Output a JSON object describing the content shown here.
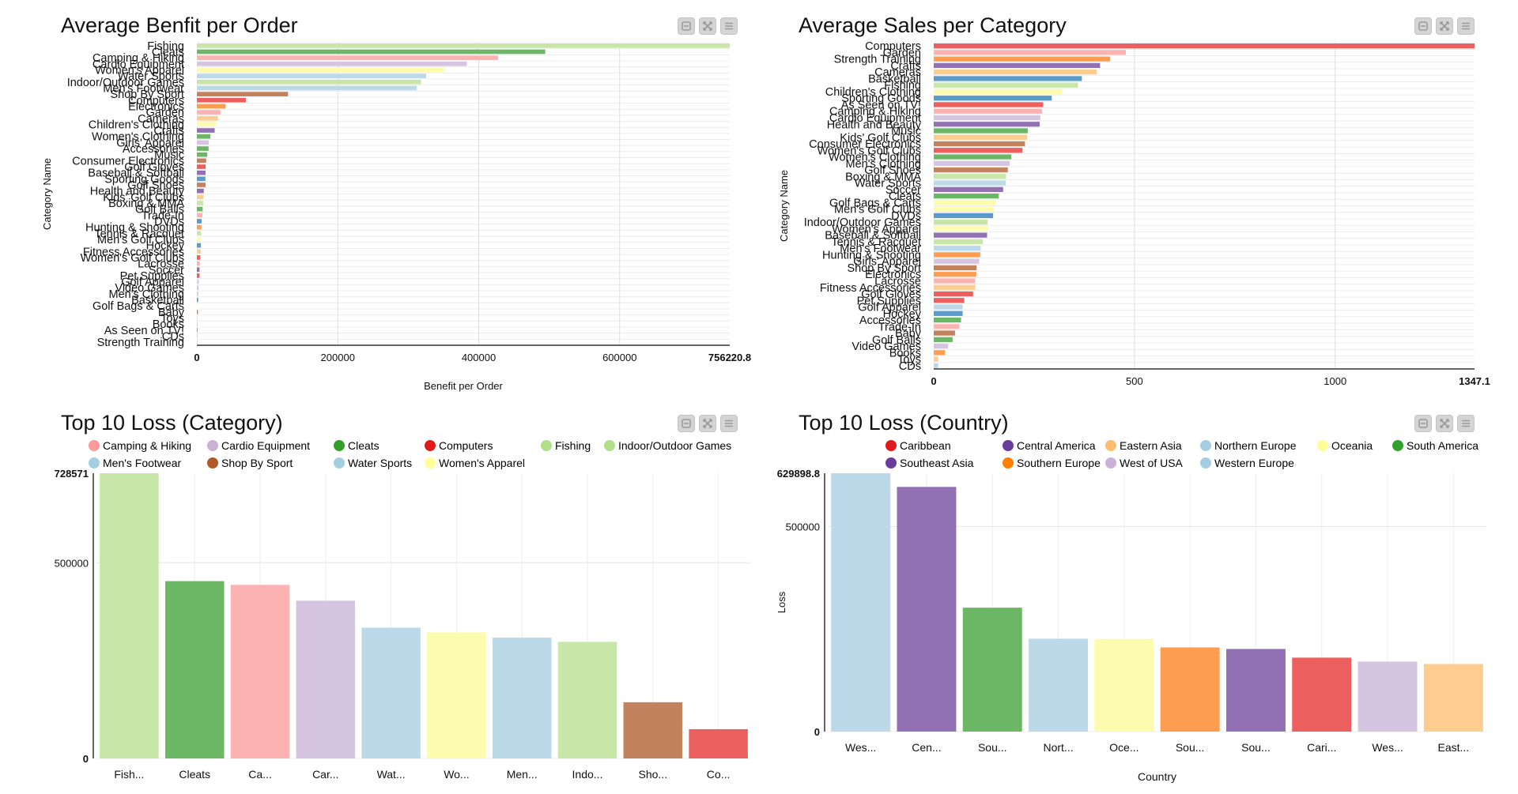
{
  "toolbar": {
    "icons": [
      "minimize-icon",
      "fullscreen-icon",
      "menu-icon"
    ]
  },
  "chart_data": [
    {
      "id": "benefit",
      "type": "bar",
      "orientation": "horizontal",
      "title": "Average Benfit per Order",
      "xlabel": "Benefit per Order",
      "ylabel": "Category Name",
      "xlim": [
        0,
        756220.8
      ],
      "xticks": [
        "0",
        "200000",
        "400000",
        "600000",
        "756220.8"
      ],
      "xtick_values": [
        0,
        200000,
        400000,
        600000,
        756220.8
      ],
      "grid": true,
      "categories": [
        "Fishing",
        "Cleats",
        "Camping & Hiking",
        "Cardio Equipment",
        "Women's Apparel",
        "Water Sports",
        "Indoor/Outdoor Games",
        "Men's Footwear",
        "Shop By Sport",
        "Computers",
        "Electronics",
        "Garden",
        "Cameras",
        "Children's Clothing",
        "Crafts",
        "Women's Clothing",
        "Girls' Apparel",
        "Accessories",
        "Music",
        "Consumer Electronics",
        "Golf Gloves",
        "Baseball & Softball",
        "Sporting Goods",
        "Golf Shoes",
        "Health and Beauty",
        "Kids' Golf Clubs",
        "Boxing & MMA",
        "Golf Balls",
        "Trade-In",
        "DVDs",
        "Hunting & Shooting",
        "Tennis & Racquet",
        "Men's Golf Clubs",
        "Hockey",
        "Fitness Accessories",
        "Women's Golf Clubs",
        "Lacrosse",
        "Soccer",
        "Pet Supplies",
        "Golf Apparel",
        "Video Games",
        "Men's Clothing",
        "Basketball",
        "Golf Bags & Carts",
        "Baby",
        "Toys",
        "Books",
        "As Seen on  TV!",
        "CDs",
        "Strength Training"
      ],
      "values": [
        756220.8,
        494400,
        427400,
        383200,
        350800,
        325400,
        318300,
        312200,
        129400,
        69500,
        40600,
        33500,
        30000,
        27400,
        25300,
        19200,
        17000,
        16600,
        14700,
        13200,
        12400,
        12400,
        12100,
        12400,
        9800,
        9400,
        9000,
        8300,
        7900,
        6800,
        6400,
        6000,
        5700,
        5700,
        5300,
        4900,
        4100,
        3800,
        3800,
        3000,
        2600,
        1900,
        1900,
        1100,
        1500,
        750,
        750,
        600,
        400,
        300
      ],
      "colors": [
        "#c7e6a8",
        "#6cb765",
        "#fdb2b2",
        "#d6c5e0",
        "#fdfcae",
        "#bcd9ea",
        "#c7e6a8",
        "#bcd9ea",
        "#c3825e",
        "#eb5f5e",
        "#fd9d52",
        "#fdb2b2",
        "#fdcd90",
        "#fdfcae",
        "#9270b4",
        "#6cb765",
        "#d6c5e0",
        "#6cb765",
        "#6cb765",
        "#c3825e",
        "#eb5f5e",
        "#9270b4",
        "#5b9bcb",
        "#c3825e",
        "#9270b4",
        "#fdcd90",
        "#c7e6a8",
        "#6cb765",
        "#fdb2b2",
        "#5b9bcb",
        "#fd9d52",
        "#c7e6a8",
        "#fdfcae",
        "#5b9bcb",
        "#fdcd90",
        "#eb5f5e",
        "#fdb2b2",
        "#9270b4",
        "#eb5f5e",
        "#bcd9ea",
        "#d6c5e0",
        "#d6c5e0",
        "#5b9bcb",
        "#fdfcae",
        "#c3825e",
        "#fdcd90",
        "#fdb2b2",
        "#eb5f5e",
        "#fdb2b2",
        "#bcd9ea"
      ]
    },
    {
      "id": "sales",
      "type": "bar",
      "orientation": "horizontal",
      "title": "Average Sales per Category",
      "xlabel": "",
      "ylabel": "Category Name",
      "xlim": [
        0,
        1347.1
      ],
      "xticks": [
        "0",
        "500",
        "1000",
        "1347.1"
      ],
      "xtick_values": [
        0,
        500,
        1000,
        1347.1
      ],
      "grid": true,
      "categories": [
        "Computers",
        "Garden",
        "Strength Training",
        "Crafts",
        "Cameras",
        "Basketball",
        "Fishing",
        "Children's Clothing",
        "Sporting Goods",
        "As Seen on  TV!",
        "Camping & Hiking",
        "Cardio Equipment",
        "Health and Beauty",
        "Music",
        "Kids' Golf Clubs",
        "Consumer Electronics",
        "Women's Golf Clubs",
        "Women's Clothing",
        "Men's Clothing",
        "Golf Shoes",
        "Boxing & MMA",
        "Water Sports",
        "Soccer",
        "Cleats",
        "Golf Bags & Carts",
        "Men's Golf Clubs",
        "DVDs",
        "Indoor/Outdoor Games",
        "Women's Apparel",
        "Baseball & Softball",
        "Tennis & Racquet",
        "Men's Footwear",
        "Hunting & Shooting",
        "Girls' Apparel",
        "Shop By Sport",
        "Electronics",
        "Lacrosse",
        "Fitness Accessories",
        "Golf Gloves",
        "Pet Supplies",
        "Golf Apparel",
        "Hockey",
        "Accessories",
        "Trade-In",
        "Baby",
        "Golf Balls",
        "Video Games",
        "Books",
        "Toys",
        "CDs"
      ],
      "values": [
        1347.1,
        478.6,
        439.4,
        414.4,
        406.4,
        369.0,
        359.2,
        320.0,
        294.1,
        272.7,
        270.1,
        265.6,
        263.8,
        234.4,
        232.6,
        227.3,
        221.0,
        193.4,
        189.0,
        184.5,
        180.0,
        179.5,
        172.9,
        162.2,
        154,
        151,
        148,
        134,
        134,
        133,
        122,
        117,
        116,
        113,
        107,
        106,
        103,
        103,
        98,
        76,
        72,
        72,
        68,
        64,
        53,
        47,
        36,
        28,
        11,
        11
      ],
      "colors": [
        "#eb5f5e",
        "#fdb2b2",
        "#fd9d52",
        "#9270b4",
        "#fdcd90",
        "#5b9bcb",
        "#c7e6a8",
        "#fdfcae",
        "#5b9bcb",
        "#eb5f5e",
        "#fdb2b2",
        "#d6c5e0",
        "#9270b4",
        "#6cb765",
        "#fdcd90",
        "#c3825e",
        "#eb5f5e",
        "#6cb765",
        "#d6c5e0",
        "#c3825e",
        "#c7e6a8",
        "#bcd9ea",
        "#9270b4",
        "#6cb765",
        "#fdfcae",
        "#fdfcae",
        "#5b9bcb",
        "#c7e6a8",
        "#fdfcae",
        "#9270b4",
        "#c7e6a8",
        "#bcd9ea",
        "#fd9d52",
        "#d6c5e0",
        "#c3825e",
        "#fd9d52",
        "#fdb2b2",
        "#fdcd90",
        "#eb5f5e",
        "#eb5f5e",
        "#bcd9ea",
        "#5b9bcb",
        "#6cb765",
        "#fdb2b2",
        "#c3825e",
        "#6cb765",
        "#d6c5e0",
        "#fd9d52",
        "#fdcd90",
        "#bcd9ea"
      ]
    },
    {
      "id": "loss_category",
      "type": "bar",
      "orientation": "vertical",
      "title": "Top 10 Loss (Category)",
      "xlabel": "",
      "ylabel": "",
      "ylim": [
        0,
        728571
      ],
      "yticks": [
        "0",
        "500000",
        "728571"
      ],
      "ytick_values": [
        0,
        500000,
        728571
      ],
      "grid": true,
      "legend_position": "top",
      "legend": [
        {
          "label": "Camping & Hiking",
          "color": "#fb9a99"
        },
        {
          "label": "Cardio Equipment",
          "color": "#cab2d6"
        },
        {
          "label": "Cleats",
          "color": "#33a02c"
        },
        {
          "label": "Computers",
          "color": "#e31a1c"
        },
        {
          "label": "Fishing",
          "color": "#b2df8a"
        },
        {
          "label": "Indoor/Outdoor Games",
          "color": "#b2df8a"
        },
        {
          "label": "Men's Footwear",
          "color": "#a6cee3"
        },
        {
          "label": "Shop By Sport",
          "color": "#b15928"
        },
        {
          "label": "Water Sports",
          "color": "#a6cee3"
        },
        {
          "label": "Women's Apparel",
          "color": "#ffff99"
        }
      ],
      "categories": [
        "Fishing",
        "Cleats",
        "Camping & Hiking",
        "Cardio Equipment",
        "Water Sports",
        "Women's Apparel",
        "Men's Footwear",
        "Indoor/Outdoor Games",
        "Shop By Sport",
        "Computers"
      ],
      "tick_labels": [
        "Fish...",
        "Cleats",
        "Ca...",
        "Car...",
        "Wat...",
        "Wo...",
        "Men...",
        "Indo...",
        "Sho...",
        "Co..."
      ],
      "values": [
        728571,
        453000,
        443400,
        403000,
        334200,
        322100,
        308600,
        297800,
        143600,
        74800
      ],
      "colors": [
        "#c7e6a8",
        "#6cb765",
        "#fdb2b2",
        "#d6c5e0",
        "#bcd9ea",
        "#fdfcae",
        "#bcd9ea",
        "#c7e6a8",
        "#c3825e",
        "#eb5f5e"
      ]
    },
    {
      "id": "loss_country",
      "type": "bar",
      "orientation": "vertical",
      "title": "Top 10 Loss (Country)",
      "xlabel": "Country",
      "ylabel": "Loss",
      "ylim": [
        0,
        629898.8
      ],
      "yticks": [
        "0",
        "500000",
        "629898.8"
      ],
      "ytick_values": [
        0,
        500000,
        629898.8
      ],
      "grid": true,
      "legend_position": "top",
      "legend": [
        {
          "label": "Caribbean",
          "color": "#e31a1c"
        },
        {
          "label": "Central America",
          "color": "#6a3d9a"
        },
        {
          "label": "Eastern Asia",
          "color": "#fdbf6f"
        },
        {
          "label": "Northern Europe",
          "color": "#a6cee3"
        },
        {
          "label": "Oceania",
          "color": "#ffff99"
        },
        {
          "label": "South America",
          "color": "#33a02c"
        },
        {
          "label": "Southeast Asia",
          "color": "#6a3d9a"
        },
        {
          "label": "Southern Europe",
          "color": "#ff7f00"
        },
        {
          "label": "West of USA",
          "color": "#cab2d6"
        },
        {
          "label": "Western Europe",
          "color": "#a6cee3"
        }
      ],
      "categories": [
        "Western Europe",
        "Central America",
        "South America",
        "Northern Europe",
        "Oceania",
        "Southern Europe",
        "Southeast Asia",
        "Caribbean",
        "West of USA",
        "Eastern Asia"
      ],
      "tick_labels": [
        "Wes...",
        "Cen...",
        "Sou...",
        "Nort...",
        "Oce...",
        "Sou...",
        "Sou...",
        "Cari...",
        "Wes...",
        "East..."
      ],
      "values": [
        629898.8,
        596600,
        302100,
        226500,
        225800,
        205300,
        201400,
        180300,
        170700,
        164900
      ],
      "colors": [
        "#bcd9ea",
        "#9270b4",
        "#6cb765",
        "#bcd9ea",
        "#fdfcae",
        "#fd9d52",
        "#9270b4",
        "#eb5f5e",
        "#d6c5e0",
        "#fdcd90"
      ]
    }
  ]
}
